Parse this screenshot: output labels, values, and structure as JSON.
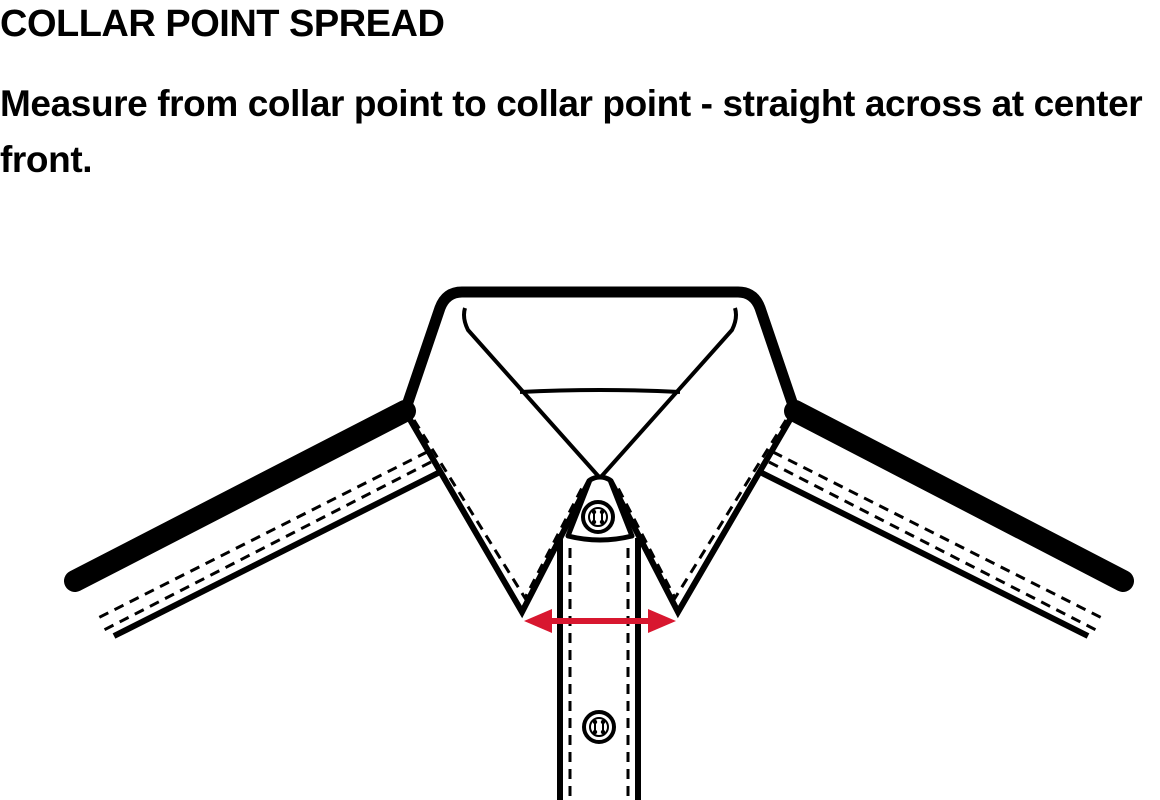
{
  "header": {
    "title": "COLLAR POINT SPREAD",
    "instruction": "Measure from collar point to collar point - straight across at center front."
  },
  "colors": {
    "ink": "#000000",
    "background": "#ffffff",
    "measure_arrow": "#d8172f"
  },
  "diagram": {
    "subject": "shirt collar",
    "measurement_name": "collar point spread"
  }
}
